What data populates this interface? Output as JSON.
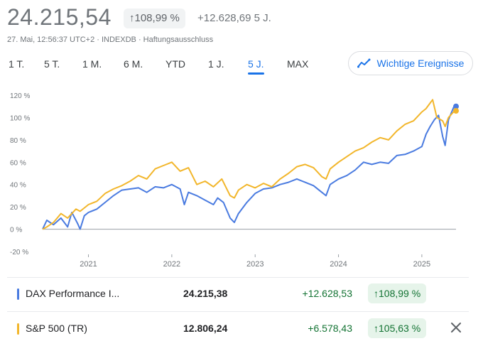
{
  "header": {
    "price": "24.215,54",
    "change_pct": "108,99 %",
    "change_abs": "+12.628,69 5 J.",
    "meta_time": "27. Mai, 12:56:37 UTC+2 · INDEXDB · ",
    "meta_link": "Haftungsausschluss"
  },
  "ranges": [
    "1 T.",
    "5 T.",
    "1 M.",
    "6 M.",
    "YTD",
    "1 J.",
    "5 J.",
    "MAX"
  ],
  "active_range": "5 J.",
  "events_button": {
    "label": "Wichtige Ereignisse",
    "icon": "trend-events-icon"
  },
  "chart_data": {
    "type": "line",
    "y_ticks": [
      "120 %",
      "100 %",
      "80 %",
      "60 %",
      "40 %",
      "20 %",
      "0 %",
      "-20 %"
    ],
    "ylim": [
      -20,
      120
    ],
    "x_ticks": [
      "2021",
      "2022",
      "2023",
      "2024",
      "2025"
    ],
    "x_start": 2020.45,
    "x_end": 2025.41,
    "grid": false,
    "series": [
      {
        "name": "DAX Performance I...",
        "color": "#4a7be0",
        "points": [
          [
            2020.45,
            0
          ],
          [
            2020.5,
            8
          ],
          [
            2020.58,
            4
          ],
          [
            2020.67,
            10
          ],
          [
            2020.75,
            2
          ],
          [
            2020.8,
            15
          ],
          [
            2020.87,
            5
          ],
          [
            2020.9,
            0
          ],
          [
            2020.95,
            12
          ],
          [
            2021.0,
            15
          ],
          [
            2021.1,
            18
          ],
          [
            2021.2,
            24
          ],
          [
            2021.3,
            30
          ],
          [
            2021.4,
            35
          ],
          [
            2021.5,
            36
          ],
          [
            2021.6,
            37
          ],
          [
            2021.7,
            33
          ],
          [
            2021.8,
            38
          ],
          [
            2021.9,
            37
          ],
          [
            2022.0,
            40
          ],
          [
            2022.1,
            36
          ],
          [
            2022.15,
            22
          ],
          [
            2022.2,
            33
          ],
          [
            2022.3,
            30
          ],
          [
            2022.4,
            26
          ],
          [
            2022.5,
            22
          ],
          [
            2022.55,
            28
          ],
          [
            2022.62,
            24
          ],
          [
            2022.7,
            10
          ],
          [
            2022.75,
            6
          ],
          [
            2022.8,
            14
          ],
          [
            2022.9,
            24
          ],
          [
            2023.0,
            32
          ],
          [
            2023.1,
            36
          ],
          [
            2023.2,
            37
          ],
          [
            2023.3,
            40
          ],
          [
            2023.4,
            42
          ],
          [
            2023.5,
            45
          ],
          [
            2023.6,
            42
          ],
          [
            2023.7,
            39
          ],
          [
            2023.8,
            33
          ],
          [
            2023.85,
            30
          ],
          [
            2023.9,
            40
          ],
          [
            2024.0,
            45
          ],
          [
            2024.1,
            48
          ],
          [
            2024.2,
            53
          ],
          [
            2024.3,
            60
          ],
          [
            2024.4,
            58
          ],
          [
            2024.5,
            60
          ],
          [
            2024.6,
            59
          ],
          [
            2024.7,
            66
          ],
          [
            2024.8,
            67
          ],
          [
            2024.9,
            70
          ],
          [
            2025.0,
            74
          ],
          [
            2025.05,
            85
          ],
          [
            2025.1,
            92
          ],
          [
            2025.15,
            98
          ],
          [
            2025.2,
            102
          ],
          [
            2025.25,
            83
          ],
          [
            2025.28,
            75
          ],
          [
            2025.32,
            98
          ],
          [
            2025.38,
            109
          ],
          [
            2025.41,
            110
          ]
        ]
      },
      {
        "name": "S&P 500 (TR)",
        "color": "#f2b62b",
        "points": [
          [
            2020.45,
            0
          ],
          [
            2020.5,
            2
          ],
          [
            2020.58,
            6
          ],
          [
            2020.67,
            14
          ],
          [
            2020.75,
            10
          ],
          [
            2020.85,
            18
          ],
          [
            2020.9,
            16
          ],
          [
            2021.0,
            22
          ],
          [
            2021.1,
            25
          ],
          [
            2021.2,
            32
          ],
          [
            2021.3,
            36
          ],
          [
            2021.4,
            39
          ],
          [
            2021.5,
            43
          ],
          [
            2021.6,
            48
          ],
          [
            2021.7,
            45
          ],
          [
            2021.8,
            54
          ],
          [
            2021.9,
            57
          ],
          [
            2022.0,
            60
          ],
          [
            2022.1,
            52
          ],
          [
            2022.2,
            55
          ],
          [
            2022.3,
            40
          ],
          [
            2022.4,
            43
          ],
          [
            2022.5,
            38
          ],
          [
            2022.6,
            45
          ],
          [
            2022.7,
            30
          ],
          [
            2022.75,
            28
          ],
          [
            2022.8,
            35
          ],
          [
            2022.9,
            40
          ],
          [
            2023.0,
            37
          ],
          [
            2023.1,
            41
          ],
          [
            2023.2,
            38
          ],
          [
            2023.3,
            45
          ],
          [
            2023.4,
            50
          ],
          [
            2023.5,
            56
          ],
          [
            2023.6,
            58
          ],
          [
            2023.7,
            55
          ],
          [
            2023.8,
            47
          ],
          [
            2023.85,
            45
          ],
          [
            2023.9,
            54
          ],
          [
            2024.0,
            60
          ],
          [
            2024.1,
            65
          ],
          [
            2024.2,
            70
          ],
          [
            2024.3,
            73
          ],
          [
            2024.4,
            78
          ],
          [
            2024.5,
            82
          ],
          [
            2024.6,
            80
          ],
          [
            2024.7,
            88
          ],
          [
            2024.8,
            94
          ],
          [
            2024.9,
            97
          ],
          [
            2025.0,
            105
          ],
          [
            2025.05,
            108
          ],
          [
            2025.1,
            113
          ],
          [
            2025.13,
            116
          ],
          [
            2025.18,
            100
          ],
          [
            2025.25,
            97
          ],
          [
            2025.28,
            92
          ],
          [
            2025.32,
            100
          ],
          [
            2025.38,
            105
          ],
          [
            2025.41,
            106
          ]
        ]
      }
    ]
  },
  "legend_rows": [
    {
      "name": "DAX Performance I...",
      "color": "#4a7be0",
      "value": "24.215,38",
      "abs": "+12.628,53",
      "pct": "108,99 %",
      "removable": false
    },
    {
      "name": "S&P 500 (TR)",
      "color": "#f2b62b",
      "value": "12.806,24",
      "abs": "+6.578,43",
      "pct": "105,63 %",
      "removable": true
    }
  ]
}
